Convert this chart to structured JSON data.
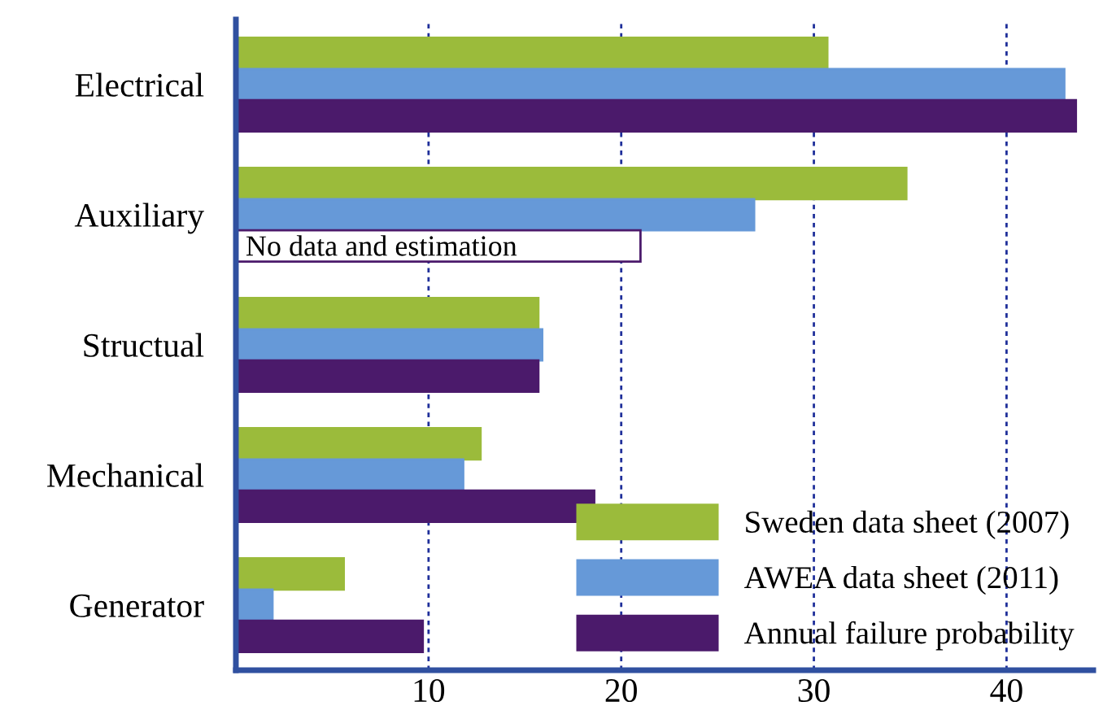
{
  "chart_data": {
    "type": "bar",
    "orientation": "horizontal",
    "categories": [
      "Electrical",
      "Auxiliary",
      "Structual",
      "Mechanical",
      "Generator"
    ],
    "series": [
      {
        "name": "Sweden data sheet (2007)",
        "color": "#9bbb3b",
        "values": [
          30.7,
          34.8,
          15.7,
          12.7,
          5.6
        ]
      },
      {
        "name": "AWEA data sheet (2011)",
        "color": "#6699d8",
        "values": [
          43.0,
          26.9,
          15.9,
          11.8,
          1.9
        ]
      },
      {
        "name": "Annual failure probability",
        "color": "#4b1a6b",
        "colors": [
          "#4b1a6b",
          "#ffffff",
          "#4b1a6b",
          "#4b1a6b",
          "#4b1a6b"
        ],
        "values": [
          43.6,
          21.0,
          15.7,
          18.6,
          9.7
        ]
      }
    ],
    "annotations": [
      "No data and estimation"
    ],
    "xlim": [
      0,
      44.5
    ],
    "xticks": [
      {
        "value": 0,
        "label": null
      },
      10,
      20,
      30,
      40
    ],
    "grid": "x",
    "legend": "bottom right"
  }
}
